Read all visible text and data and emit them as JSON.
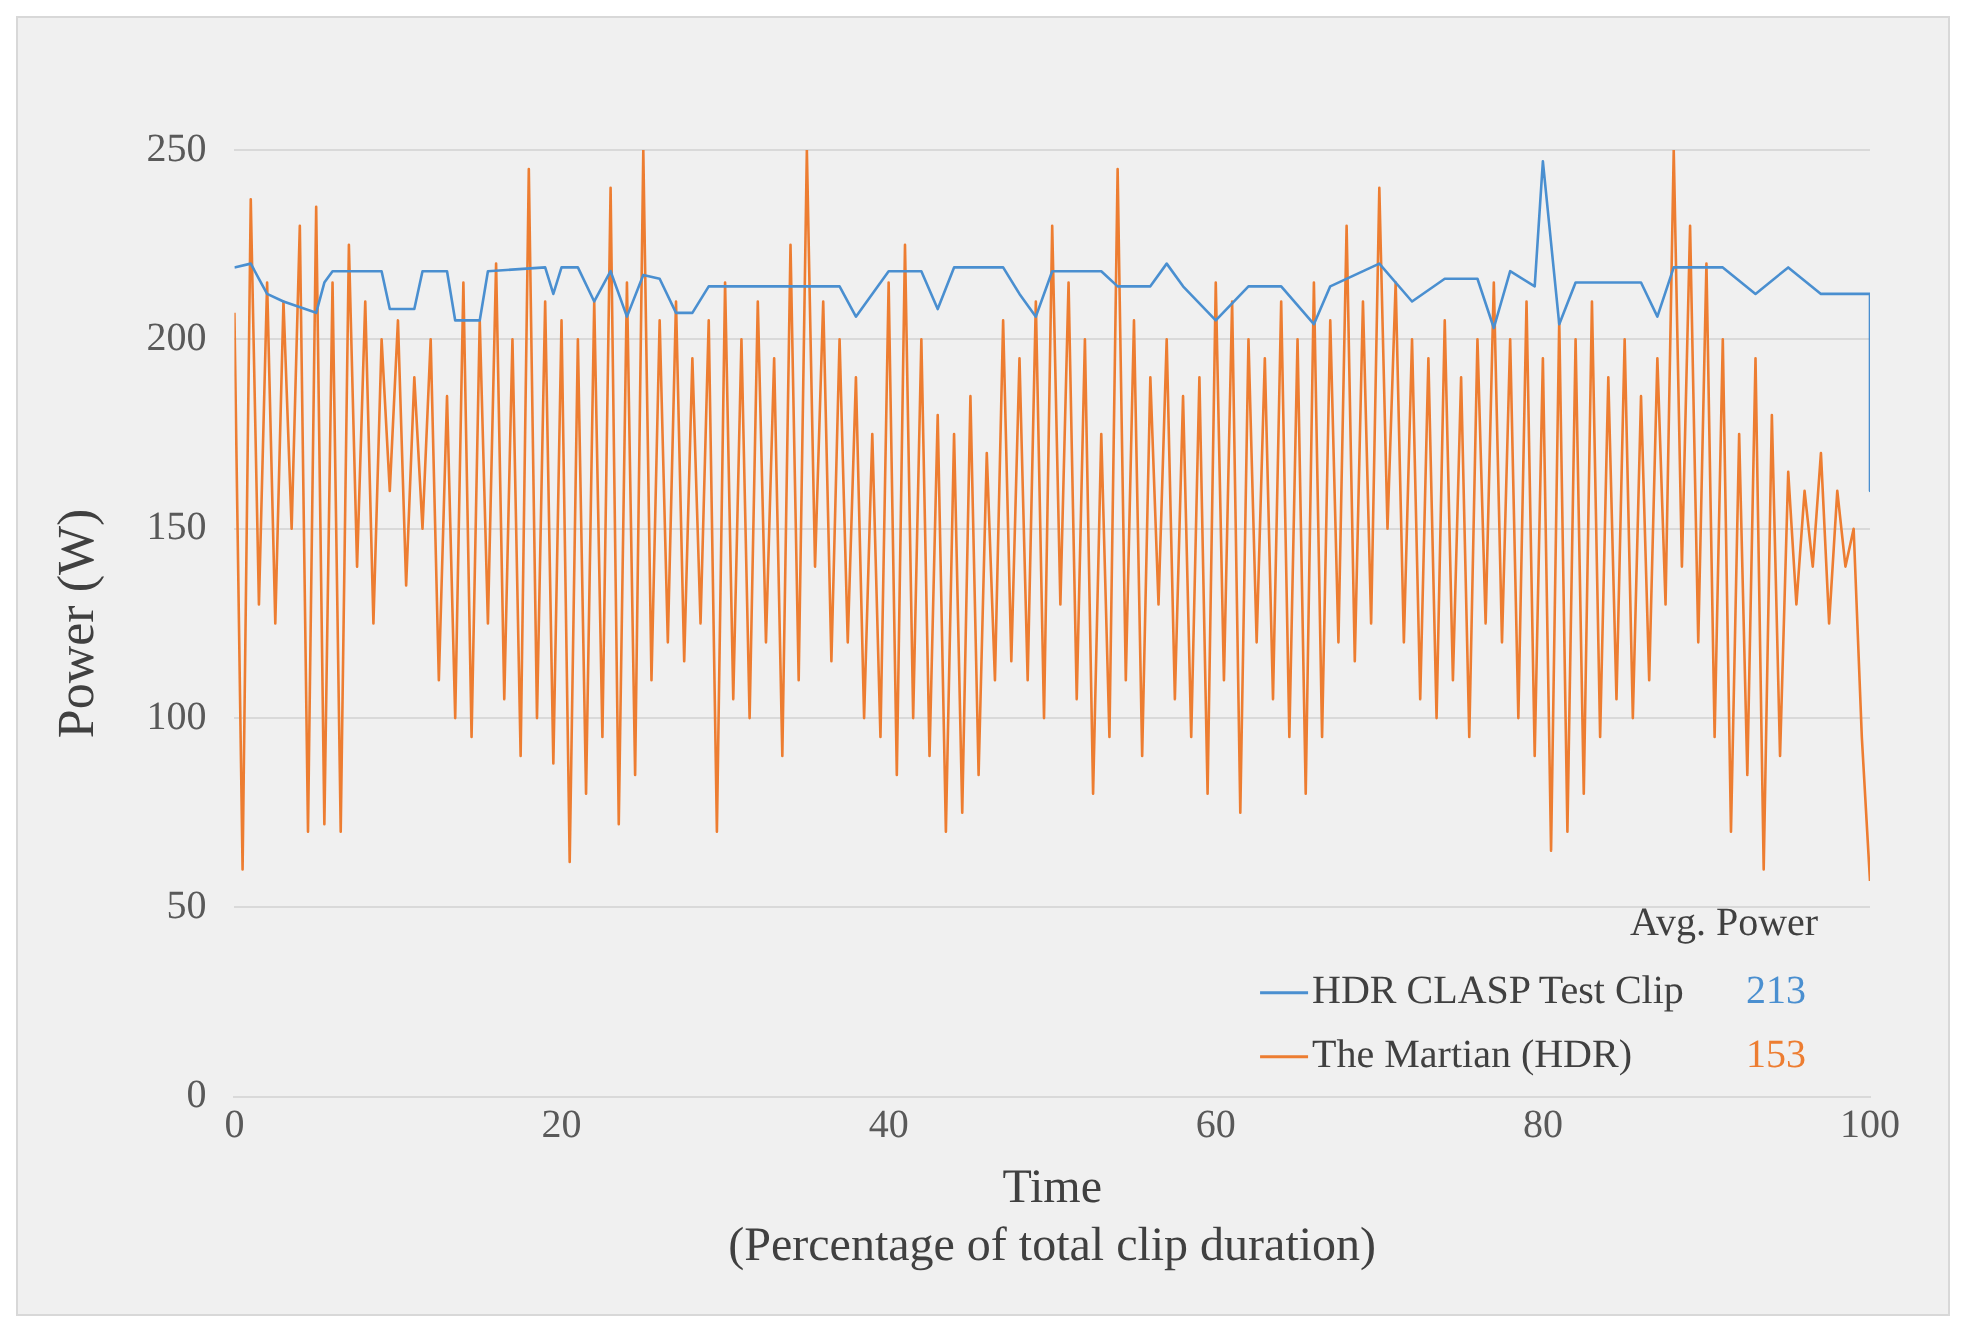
{
  "chart_data": {
    "type": "line",
    "xlabel": "Time\n(Percentage of total clip duration)",
    "ylabel": "Power (W)",
    "legend_title": "Avg. Power",
    "annotations": [
      "213",
      "153"
    ],
    "xlim": [
      0,
      100
    ],
    "xticks": [
      0,
      20,
      40,
      60,
      80,
      100
    ],
    "ylim": [
      0,
      250
    ],
    "yticks": [
      0,
      50,
      100,
      150,
      200,
      250
    ],
    "grid": "y",
    "legend": "bottom right",
    "marker": "none",
    "line_style": "solid",
    "series": [
      {
        "name": "HDR CLASP Test Clip",
        "color": "#4a8fd0",
        "x": [
          0,
          1,
          1.5,
          2,
          3,
          5,
          5.5,
          6,
          9,
          9.5,
          11,
          11.5,
          13,
          13.5,
          15,
          15.5,
          19,
          19.5,
          20,
          21,
          22,
          23,
          24,
          25,
          26,
          27,
          28,
          29,
          37,
          38,
          40,
          42,
          43,
          44,
          47,
          48,
          49,
          50,
          53,
          54,
          56,
          57,
          58,
          60,
          62,
          64,
          66,
          67,
          70,
          72,
          74,
          76,
          77,
          78,
          79.5,
          80,
          81,
          82,
          86,
          87,
          88,
          91,
          93,
          95,
          97,
          100,
          100
        ],
        "values": [
          219,
          220,
          216,
          212,
          210,
          207,
          215,
          218,
          218,
          208,
          208,
          218,
          218,
          205,
          205,
          218,
          219,
          212,
          219,
          219,
          210,
          218,
          206,
          217,
          216,
          207,
          207,
          214,
          214,
          206,
          218,
          218,
          208,
          219,
          219,
          212,
          206,
          218,
          218,
          214,
          214,
          220,
          214,
          205,
          214,
          214,
          204,
          214,
          220,
          210,
          216,
          216,
          203,
          218,
          214,
          247,
          204,
          215,
          215,
          206,
          219,
          219,
          212,
          219,
          212,
          212,
          160
        ]
      },
      {
        "name": "The Martian (HDR)",
        "color": "#ed7d31",
        "x": [
          0,
          0.5,
          1,
          1.5,
          2,
          2.5,
          3,
          3.5,
          4,
          4.5,
          5,
          5.5,
          6,
          6.5,
          7,
          7.5,
          8,
          8.5,
          9,
          9.5,
          10,
          10.5,
          11,
          11.5,
          12,
          12.5,
          13,
          13.5,
          14,
          14.5,
          15,
          15.5,
          16,
          16.5,
          17,
          17.5,
          18,
          18.5,
          19,
          19.5,
          20,
          20.5,
          21,
          21.5,
          22,
          22.5,
          23,
          23.5,
          24,
          24.5,
          25,
          25.5,
          26,
          26.5,
          27,
          27.5,
          28,
          28.5,
          29,
          29.5,
          30,
          30.5,
          31,
          31.5,
          32,
          32.5,
          33,
          33.5,
          34,
          34.5,
          35,
          35.5,
          36,
          36.5,
          37,
          37.5,
          38,
          38.5,
          39,
          39.5,
          40,
          40.5,
          41,
          41.5,
          42,
          42.5,
          43,
          43.5,
          44,
          44.5,
          45,
          45.5,
          46,
          46.5,
          47,
          47.5,
          48,
          48.5,
          49,
          49.5,
          50,
          50.5,
          51,
          51.5,
          52,
          52.5,
          53,
          53.5,
          54,
          54.5,
          55,
          55.5,
          56,
          56.5,
          57,
          57.5,
          58,
          58.5,
          59,
          59.5,
          60,
          60.5,
          61,
          61.5,
          62,
          62.5,
          63,
          63.5,
          64,
          64.5,
          65,
          65.5,
          66,
          66.5,
          67,
          67.5,
          68,
          68.5,
          69,
          69.5,
          70,
          70.5,
          71,
          71.5,
          72,
          72.5,
          73,
          73.5,
          74,
          74.5,
          75,
          75.5,
          76,
          76.5,
          77,
          77.5,
          78,
          78.5,
          79,
          79.5,
          80,
          80.5,
          81,
          81.5,
          82,
          82.5,
          83,
          83.5,
          84,
          84.5,
          85,
          85.5,
          86,
          86.5,
          87,
          87.5,
          88,
          88.5,
          89,
          89.5,
          90,
          90.5,
          91,
          91.5,
          92,
          92.5,
          93,
          93.5,
          94,
          94.5,
          95,
          95.5,
          96,
          96.5,
          97,
          97.5,
          98,
          98.5,
          99,
          99.5,
          100
        ],
        "values": [
          207,
          60,
          237,
          130,
          215,
          125,
          210,
          150,
          230,
          70,
          235,
          72,
          215,
          70,
          225,
          140,
          210,
          125,
          200,
          160,
          205,
          135,
          190,
          150,
          200,
          110,
          185,
          100,
          215,
          95,
          205,
          125,
          220,
          105,
          200,
          90,
          245,
          100,
          210,
          88,
          205,
          62,
          200,
          80,
          210,
          95,
          240,
          72,
          215,
          85,
          250,
          110,
          205,
          120,
          210,
          115,
          195,
          125,
          205,
          70,
          215,
          105,
          200,
          100,
          210,
          120,
          195,
          90,
          225,
          110,
          250,
          140,
          210,
          115,
          200,
          120,
          190,
          100,
          175,
          95,
          215,
          85,
          225,
          100,
          200,
          90,
          180,
          70,
          175,
          75,
          185,
          85,
          170,
          110,
          205,
          115,
          195,
          110,
          210,
          100,
          230,
          130,
          215,
          105,
          200,
          80,
          175,
          95,
          245,
          110,
          205,
          90,
          190,
          130,
          200,
          105,
          185,
          95,
          190,
          80,
          215,
          110,
          210,
          75,
          200,
          120,
          195,
          105,
          210,
          95,
          200,
          80,
          215,
          95,
          205,
          120,
          230,
          115,
          210,
          125,
          240,
          150,
          215,
          120,
          200,
          105,
          195,
          100,
          205,
          110,
          190,
          95,
          200,
          125,
          215,
          120,
          200,
          100,
          210,
          90,
          195,
          65,
          205,
          70,
          200,
          80,
          210,
          95,
          190,
          105,
          200,
          100,
          185,
          110,
          195,
          130,
          250,
          140,
          230,
          120,
          220,
          95,
          200,
          70,
          175,
          85,
          195,
          60,
          180,
          90,
          165,
          130,
          160,
          140,
          170,
          125,
          160,
          140,
          150,
          95,
          57
        ]
      }
    ]
  }
}
